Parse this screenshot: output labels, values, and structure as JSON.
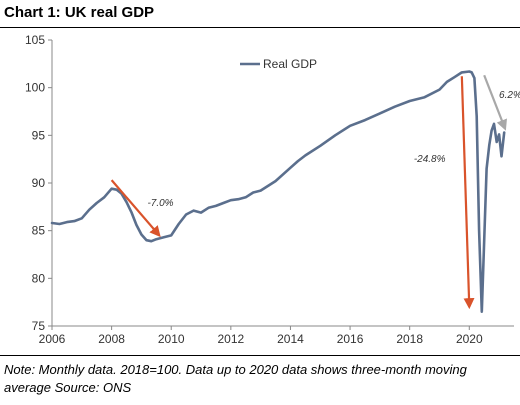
{
  "title": "Chart 1: UK real GDP",
  "note": "Note: Monthly data. 2018=100. Data up to 2020 data shows three-month moving average Source: ONS",
  "colors": {
    "series": "#5b6f8d",
    "arrow_red": "#d9532b",
    "arrow_gray": "#a8a8a8",
    "axis": "#888888"
  },
  "chart_data": {
    "type": "line",
    "title": "Chart 1: UK real GDP",
    "xlabel": "",
    "ylabel": "",
    "xlim": [
      2006,
      2021.5
    ],
    "ylim": [
      75,
      105
    ],
    "x_ticks": [
      2006,
      2008,
      2010,
      2012,
      2014,
      2016,
      2018,
      2020
    ],
    "y_ticks": [
      75,
      80,
      85,
      90,
      95,
      100,
      105
    ],
    "grid": false,
    "legend": {
      "position": "top-center",
      "entries": [
        "Real GDP"
      ]
    },
    "series": [
      {
        "name": "Real GDP",
        "x": [
          2006.0,
          2006.25,
          2006.5,
          2006.75,
          2007.0,
          2007.25,
          2007.5,
          2007.75,
          2008.0,
          2008.17,
          2008.33,
          2008.5,
          2008.67,
          2008.83,
          2009.0,
          2009.17,
          2009.33,
          2009.5,
          2009.75,
          2010.0,
          2010.25,
          2010.5,
          2010.75,
          2011.0,
          2011.25,
          2011.5,
          2011.75,
          2012.0,
          2012.25,
          2012.5,
          2012.75,
          2013.0,
          2013.5,
          2014.0,
          2014.25,
          2014.5,
          2015.0,
          2015.5,
          2016.0,
          2016.5,
          2017.0,
          2017.5,
          2018.0,
          2018.5,
          2019.0,
          2019.25,
          2019.5,
          2019.75,
          2020.0,
          2020.08,
          2020.17,
          2020.25,
          2020.33,
          2020.42,
          2020.5,
          2020.58,
          2020.67,
          2020.75,
          2020.83,
          2020.92,
          2021.0,
          2021.08,
          2021.17
        ],
        "values": [
          85.8,
          85.7,
          85.9,
          86.0,
          86.3,
          87.2,
          87.9,
          88.5,
          89.4,
          89.3,
          88.9,
          88.0,
          86.9,
          85.6,
          84.6,
          84.0,
          83.9,
          84.1,
          84.3,
          84.5,
          85.7,
          86.7,
          87.1,
          86.9,
          87.4,
          87.6,
          87.9,
          88.2,
          88.3,
          88.5,
          89.0,
          89.2,
          90.2,
          91.6,
          92.3,
          92.9,
          93.9,
          95.0,
          96.0,
          96.6,
          97.3,
          98.0,
          98.6,
          99.0,
          99.8,
          100.6,
          101.1,
          101.6,
          101.7,
          101.6,
          101.0,
          97.0,
          85.0,
          76.5,
          84.0,
          91.5,
          94.0,
          95.5,
          96.2,
          94.3,
          95.1,
          92.8,
          95.3
        ]
      }
    ],
    "annotations": [
      {
        "text": "-7.0%",
        "from": [
          2008.0,
          90.3
        ],
        "to": [
          2009.6,
          84.5
        ],
        "color": "arrow_red"
      },
      {
        "text": "-24.8%",
        "from": [
          2019.75,
          101.2
        ],
        "to": [
          2020.0,
          77.0
        ],
        "color": "arrow_red"
      },
      {
        "text": "6.2%",
        "from": [
          2020.5,
          101.3
        ],
        "to": [
          2021.2,
          95.7
        ],
        "color": "arrow_gray"
      }
    ]
  }
}
